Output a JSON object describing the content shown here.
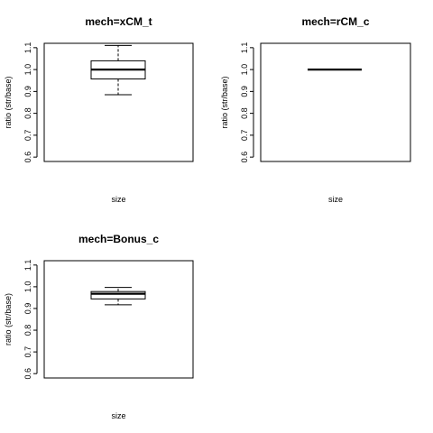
{
  "chart_data": [
    {
      "type": "boxplot",
      "title": "mech=xCM_t",
      "xlabel": "size",
      "ylabel": "ratio (str/base)",
      "ylim": [
        0.58,
        1.12
      ],
      "yticks": [
        "0.6",
        "0.7",
        "0.8",
        "0.9",
        "1.0",
        "1.1"
      ],
      "boxes": [
        {
          "min": 0.885,
          "q1": 0.957,
          "median": 1.0,
          "q3": 1.04,
          "max": 1.11
        }
      ]
    },
    {
      "type": "boxplot",
      "title": "mech=rCM_c",
      "xlabel": "size",
      "ylabel": "ratio (str/base)",
      "ylim": [
        0.58,
        1.12
      ],
      "yticks": [
        "0.6",
        "0.7",
        "0.8",
        "0.9",
        "1.0",
        "1.1"
      ],
      "boxes": [
        {
          "min": 1.0,
          "q1": 1.0,
          "median": 1.0,
          "q3": 1.0,
          "max": 1.0
        }
      ]
    },
    {
      "type": "boxplot",
      "title": "mech=Bonus_c",
      "xlabel": "size",
      "ylabel": "ratio (str/base)",
      "ylim": [
        0.58,
        1.12
      ],
      "yticks": [
        "0.6",
        "0.7",
        "0.8",
        "0.9",
        "1.0",
        "1.1"
      ],
      "boxes": [
        {
          "min": 0.917,
          "q1": 0.944,
          "median": 0.968,
          "q3": 0.978,
          "max": 0.997
        }
      ]
    }
  ]
}
